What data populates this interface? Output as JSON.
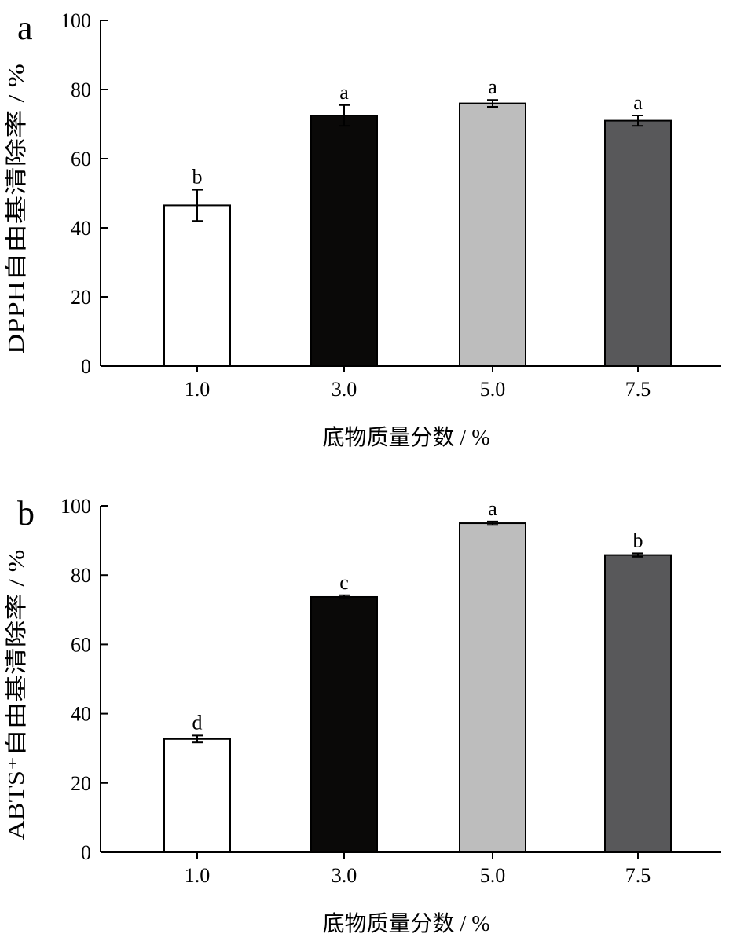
{
  "chart_data": [
    {
      "panel": "a",
      "type": "bar",
      "categories": [
        "1.0",
        "3.0",
        "5.0",
        "7.5"
      ],
      "values": [
        46.5,
        72.5,
        76.0,
        71.0
      ],
      "errors": [
        4.5,
        3.0,
        1.0,
        1.5
      ],
      "significance": [
        "b",
        "a",
        "a",
        "a"
      ],
      "bar_colors": [
        "#ffffff",
        "#0a0908",
        "#bdbdbd",
        "#58585a"
      ],
      "xlabel": "底物质量分数 / %",
      "ylabel": "DPPH自由基清除率 / %",
      "ylim": [
        0,
        100
      ],
      "yticks": [
        "0",
        "20",
        "40",
        "60",
        "80",
        "100"
      ],
      "grid": false
    },
    {
      "panel": "b",
      "type": "bar",
      "categories": [
        "1.0",
        "3.0",
        "5.0",
        "7.5"
      ],
      "values": [
        32.7,
        73.7,
        95.0,
        85.8
      ],
      "errors": [
        1.0,
        0.5,
        0.5,
        0.5
      ],
      "significance": [
        "d",
        "c",
        "a",
        "b"
      ],
      "bar_colors": [
        "#ffffff",
        "#0a0908",
        "#bdbdbd",
        "#58585a"
      ],
      "xlabel": "底物质量分数 / %",
      "ylabel": "ABTS⁺自由基清除率 / %",
      "ylim": [
        0,
        100
      ],
      "yticks": [
        "0",
        "20",
        "40",
        "60",
        "80",
        "100"
      ],
      "grid": false
    }
  ]
}
